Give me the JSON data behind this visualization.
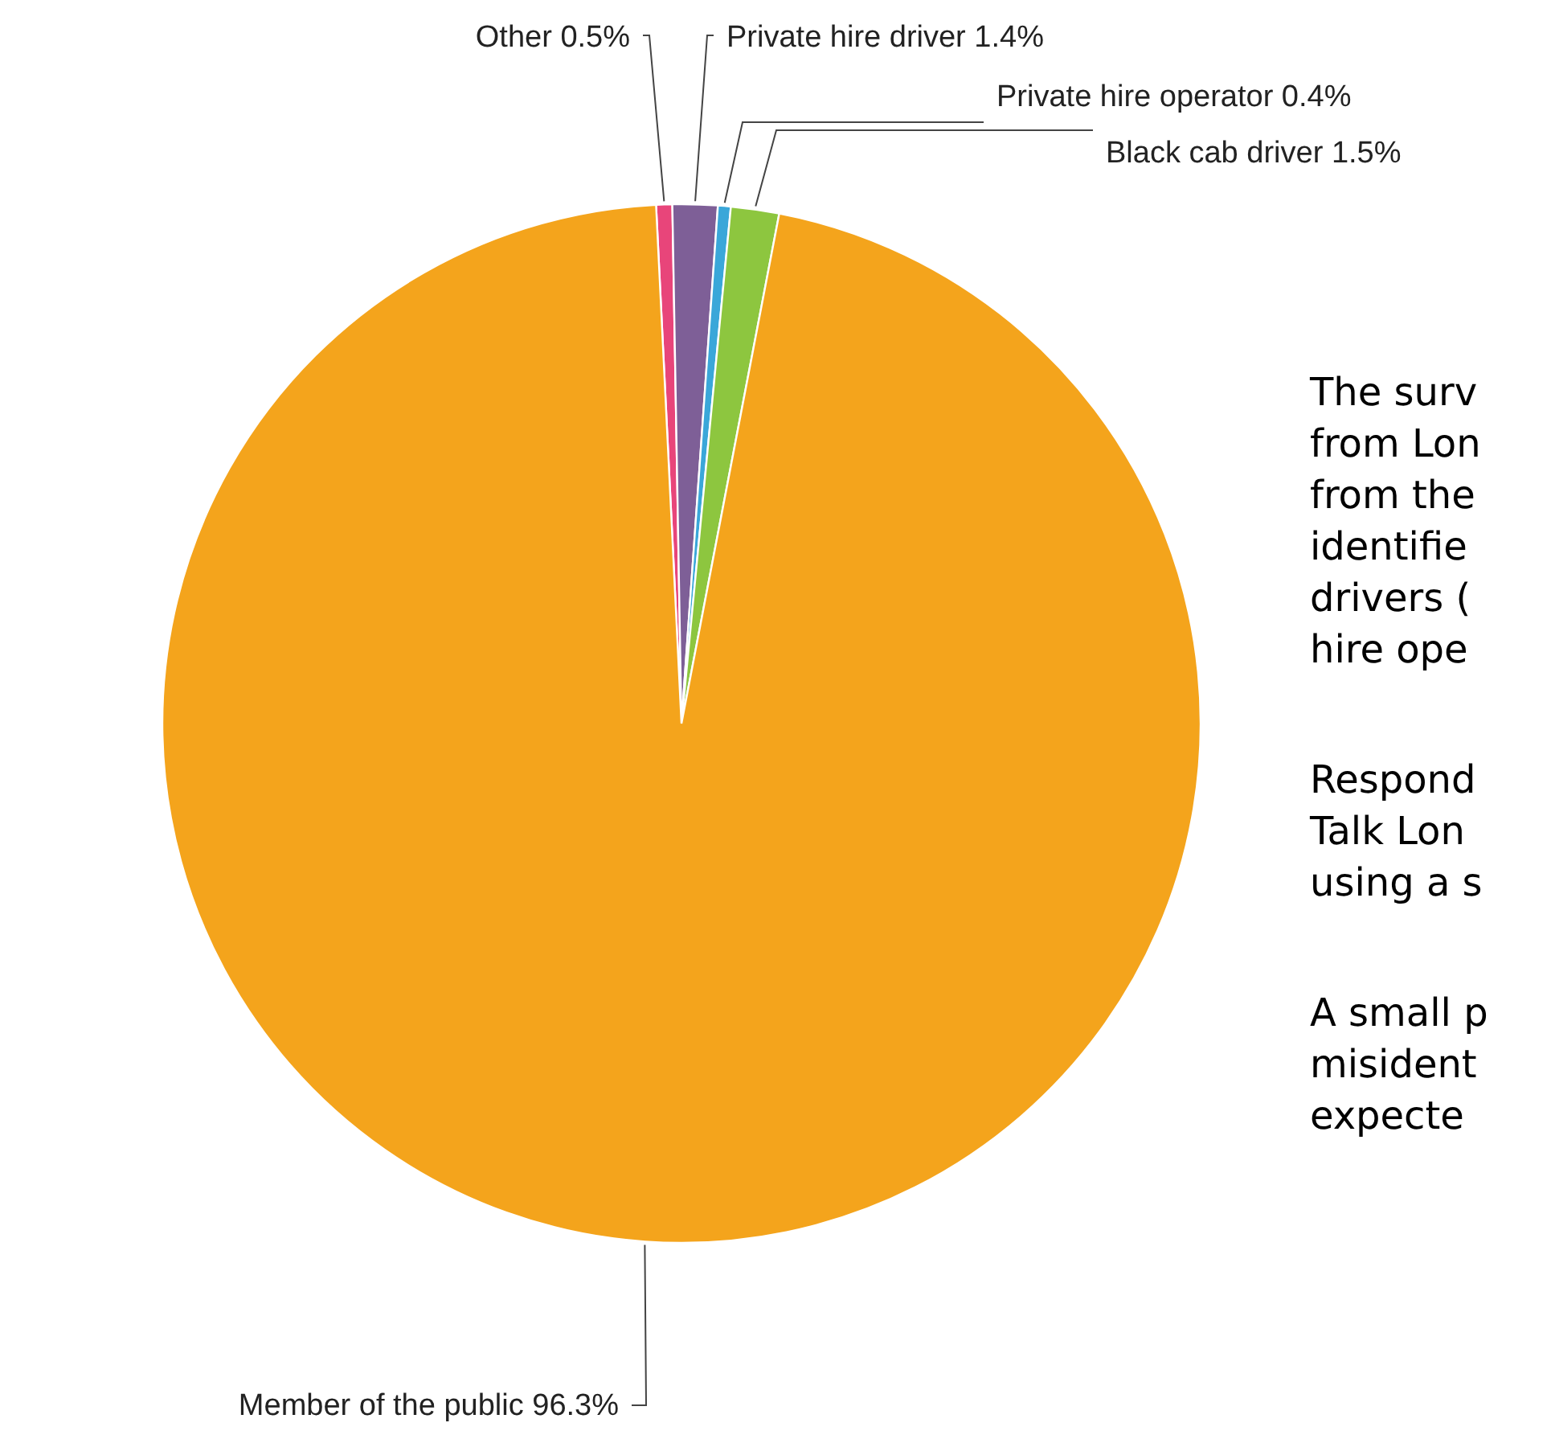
{
  "chart_data": {
    "type": "pie",
    "categories": [
      "Other",
      "Private hire driver",
      "Private hire operator",
      "Black cab driver",
      "Member of the public"
    ],
    "values": [
      0.5,
      1.4,
      0.4,
      1.5,
      96.3
    ],
    "value_labels": [
      "0.5%",
      "1.4%",
      "0.4%",
      "1.5%",
      "96.3%"
    ],
    "colors": [
      "#e8457a",
      "#7e5f97",
      "#3aa7d9",
      "#8dc63f",
      "#f4a41c"
    ],
    "annotations": [
      "The surv",
      "from Lon",
      "from the",
      "identifie",
      "drivers (",
      "hire ope",
      "Respond",
      "Talk Lon",
      "using a s",
      "A small p",
      "misident",
      "expecte"
    ]
  }
}
